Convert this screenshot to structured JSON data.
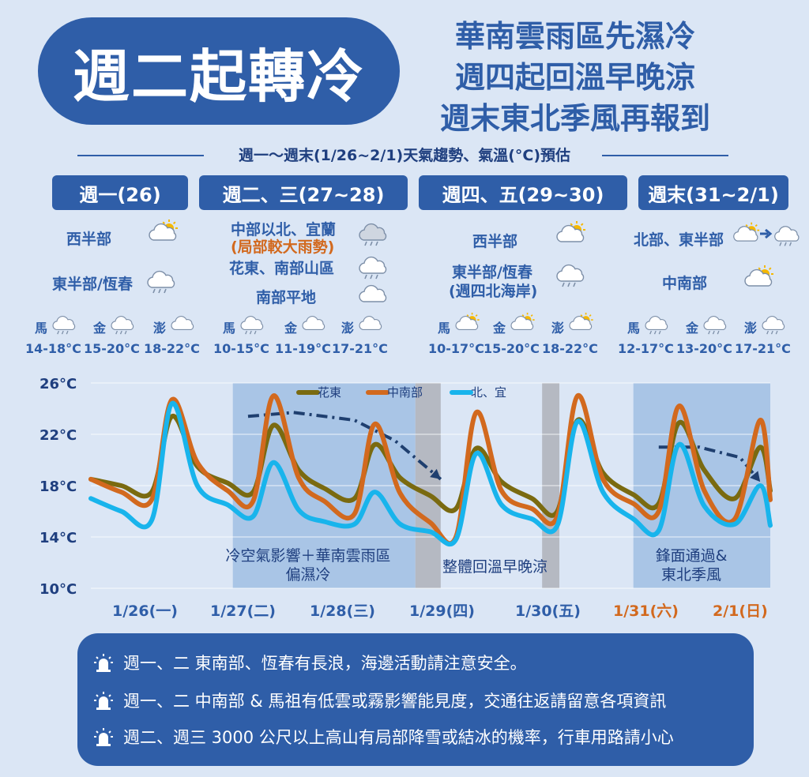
{
  "header": {
    "title": "週二起轉冷",
    "subtitle_lines": [
      "華南雲雨區先濕冷",
      "週四起回溫早晚涼",
      "週末東北季風再報到"
    ],
    "band_title": "週一～週末(1/26~2/1)天氣趨勢、氣溫(°C)預估"
  },
  "periods": [
    {
      "label": "週一(26)",
      "regions": [
        {
          "name": "西半部",
          "icon": "partly-cloudy-sun-icon"
        },
        {
          "name": "東半部/恆春",
          "icon": "cloud-rain-icon"
        }
      ],
      "stations": [
        {
          "name": "馬",
          "icon": "cloud-rain-icon",
          "temp": "14-18°C"
        },
        {
          "name": "金",
          "icon": "cloud-rain-icon",
          "temp": "15-20°C"
        },
        {
          "name": "澎",
          "icon": "cloud-icon",
          "temp": "18-22°C"
        }
      ]
    },
    {
      "label": "週二、三(27~28)",
      "regions": [
        {
          "name": "中部以北、宜蘭",
          "note": "(局部較大雨勢)",
          "icon": "cloud-heavy-rain-icon"
        },
        {
          "name": "花東、南部山區",
          "icon": "cloud-rain-icon"
        },
        {
          "name": "南部平地",
          "icon": "cloud-icon"
        }
      ],
      "stations": [
        {
          "name": "馬",
          "icon": "cloud-rain-icon",
          "temp": "10-15°C"
        },
        {
          "name": "金",
          "icon": "cloud-icon",
          "temp": "11-19°C"
        },
        {
          "name": "澎",
          "icon": "cloud-icon",
          "temp": "17-21°C"
        }
      ]
    },
    {
      "label": "週四、五(29~30)",
      "regions": [
        {
          "name": "西半部",
          "icon": "partly-cloudy-sun-icon"
        },
        {
          "name": "東半部/恆春",
          "note2": "(週四北海岸)",
          "icon": "cloud-rain-icon"
        }
      ],
      "stations": [
        {
          "name": "馬",
          "icon": "partly-cloudy-sun-icon",
          "temp": "10-17°C"
        },
        {
          "name": "金",
          "icon": "partly-cloudy-sun-icon",
          "temp": "15-20°C"
        },
        {
          "name": "澎",
          "icon": "partly-cloudy-sun-icon",
          "temp": "18-22°C"
        }
      ]
    },
    {
      "label": "週末(31~2/1)",
      "regions": [
        {
          "name": "北部、東半部",
          "icon": "sun-to-rain-icon"
        },
        {
          "name": "中南部",
          "icon": "partly-cloudy-sun-icon"
        }
      ],
      "stations": [
        {
          "name": "馬",
          "icon": "cloud-rain-icon",
          "temp": "12-17°C"
        },
        {
          "name": "金",
          "icon": "cloud-rain-icon",
          "temp": "13-20°C"
        },
        {
          "name": "澎",
          "icon": "cloud-rain-icon",
          "temp": "17-21°C"
        }
      ]
    }
  ],
  "chart_data": {
    "type": "line",
    "y_tick_labels": [
      "26°C",
      "22°C",
      "18°C",
      "14°C",
      "10°C"
    ],
    "ylim": [
      10,
      26
    ],
    "x_tick_labels": [
      "1/26(一)",
      "1/27(二)",
      "1/28(三)",
      "1/29(四)",
      "1/30(五)",
      "1/31(六)",
      "2/1(日)"
    ],
    "weekend_ticks": [
      5,
      6
    ],
    "x_units": "day (0 = 1/26 00:00)",
    "xlim": [
      -0.5,
      6.2
    ],
    "grid": "horizontal",
    "legend_position": "top",
    "series": [
      {
        "name": "花東",
        "color": "#7a6a10",
        "x": [
          -0.5,
          -0.2,
          0.1,
          0.3,
          0.55,
          0.85,
          1.1,
          1.3,
          1.55,
          1.8,
          2.1,
          2.3,
          2.55,
          2.85,
          3.1,
          3.3,
          3.55,
          3.85,
          4.1,
          4.3,
          4.55,
          4.85,
          5.1,
          5.3,
          5.55,
          5.85,
          6.1,
          6.2
        ],
        "y": [
          18.5,
          18.0,
          17.5,
          23.4,
          19.5,
          18.2,
          17.5,
          22.7,
          19.2,
          17.8,
          17.0,
          21.2,
          18.6,
          17.2,
          16.2,
          20.9,
          18.3,
          17.0,
          16.0,
          23.1,
          19.0,
          17.3,
          16.6,
          22.9,
          19.2,
          17.0,
          21.0,
          17.6
        ]
      },
      {
        "name": "中南部",
        "color": "#d2691e",
        "x": [
          -0.5,
          -0.2,
          0.1,
          0.3,
          0.55,
          0.85,
          1.1,
          1.3,
          1.55,
          1.8,
          2.1,
          2.3,
          2.55,
          2.85,
          3.1,
          3.3,
          3.55,
          3.85,
          4.1,
          4.3,
          4.55,
          4.85,
          5.1,
          5.3,
          5.55,
          5.85,
          6.1,
          6.2
        ],
        "y": [
          18.5,
          17.5,
          16.9,
          24.7,
          19.8,
          17.6,
          16.8,
          25.0,
          18.6,
          16.8,
          15.8,
          22.8,
          17.4,
          15.1,
          14.0,
          23.7,
          17.6,
          16.2,
          15.6,
          25.0,
          18.5,
          16.6,
          16.0,
          24.2,
          17.6,
          15.4,
          23.1,
          16.9
        ]
      },
      {
        "name": "北、宜",
        "color": "#18b4ec",
        "x": [
          -0.5,
          -0.2,
          0.1,
          0.3,
          0.55,
          0.85,
          1.1,
          1.3,
          1.55,
          1.8,
          2.1,
          2.3,
          2.55,
          2.85,
          3.1,
          3.3,
          3.55,
          3.85,
          4.1,
          4.3,
          4.55,
          4.85,
          5.1,
          5.3,
          5.55,
          5.85,
          6.1,
          6.2
        ],
        "y": [
          17.0,
          16.0,
          15.3,
          24.4,
          18.0,
          16.5,
          15.6,
          19.8,
          16.1,
          15.2,
          15.0,
          17.5,
          15.0,
          14.4,
          13.8,
          20.5,
          16.5,
          15.4,
          14.9,
          23.0,
          17.5,
          15.4,
          14.5,
          21.2,
          16.4,
          15.0,
          18.0,
          14.9
        ]
      }
    ],
    "shaded_periods": [
      {
        "start": 0.9,
        "end": 2.7,
        "label_lines": [
          "冷空氣影響＋華南雲雨區",
          "偏濕冷"
        ]
      },
      {
        "start": 4.85,
        "end": 6.2,
        "label_lines": [
          "鋒面通過&",
          "東北季風"
        ]
      }
    ],
    "gray_periods": [
      {
        "start": 2.7,
        "end": 2.95
      },
      {
        "start": 3.95,
        "end": 4.12
      }
    ],
    "mid_annotation": "整體回溫早晚涼",
    "trend_arrows": [
      {
        "x": [
          1.05,
          1.5,
          2.1,
          2.5,
          2.95
        ],
        "y": [
          23.4,
          23.7,
          23.1,
          21.5,
          18.5
        ]
      },
      {
        "x": [
          5.1,
          5.5,
          5.9,
          6.1
        ],
        "y": [
          21.0,
          21.0,
          20.2,
          18.3
        ]
      }
    ]
  },
  "notes": [
    "週一、二 東南部、恆春有長浪，海邊活動請注意安全。",
    "週一、二 中南部 & 馬祖有低雲或霧影響能見度，交通往返請留意各項資訊",
    "週二、週三 3000 公尺以上高山有局部降雪或結冰的機率，行車用路請小心"
  ],
  "colors": {
    "primary": "#2f5ea8",
    "accent": "#d2691e",
    "background": "#dbe6f5"
  }
}
